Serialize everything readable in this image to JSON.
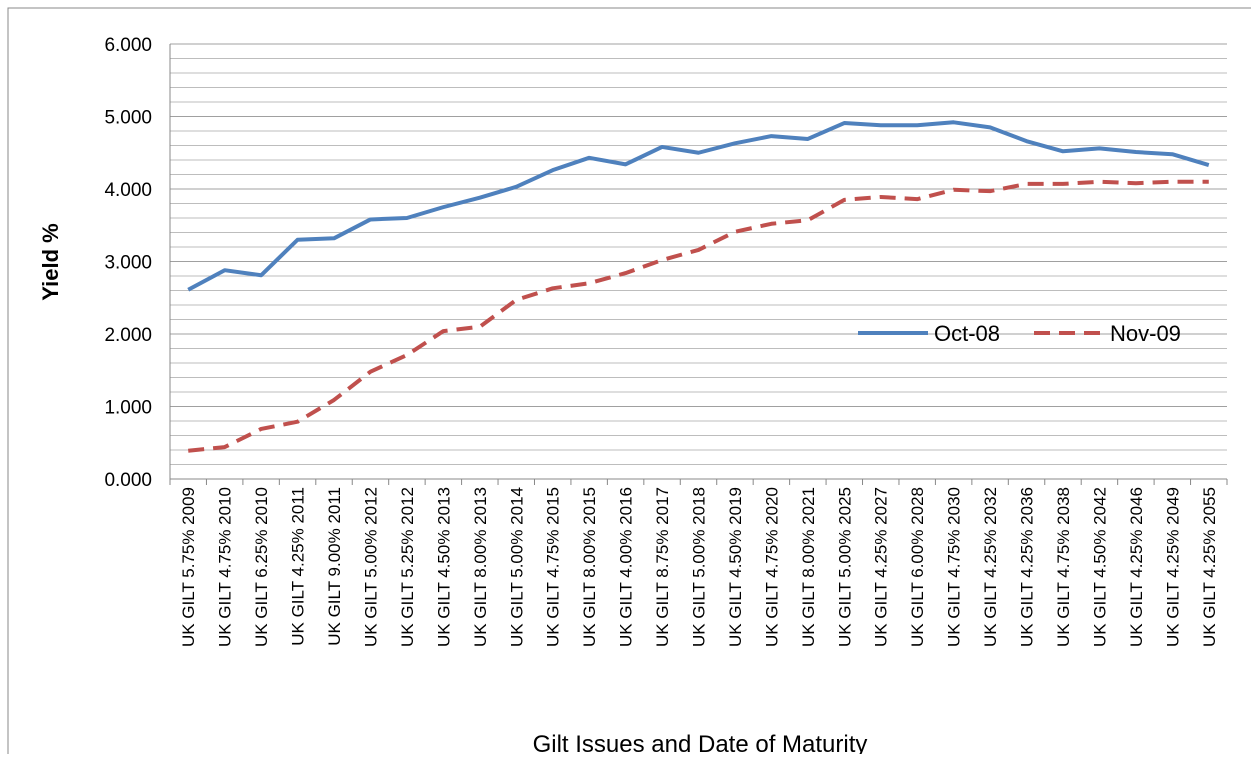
{
  "chart_data": {
    "type": "line",
    "x_label": "Gilt Issues and Date of Maturity",
    "y_label": "Yield %",
    "categories": [
      "UK GILT 5.75% 2009",
      "UK GILT 4.75% 2010",
      "UK GILT 6.25% 2010",
      "UK GILT 4.25% 2011",
      "UK GILT 9.00% 2011",
      "UK GILT 5.00% 2012",
      "UK GILT 5.25% 2012",
      "UK GILT 4.50% 2013",
      "UK GILT 8.00% 2013",
      "UK GILT 5.00% 2014",
      "UK GILT 4.75% 2015",
      "UK GILT 8.00% 2015",
      "UK GILT 4.00% 2016",
      "UK GILT 8.75% 2017",
      "UK GILT 5.00% 2018",
      "UK GILT 4.50% 2019",
      "UK GILT 4.75% 2020",
      "UK GILT 8.00% 2021",
      "UK GILT 5.00% 2025",
      "UK GILT 4.25% 2027",
      "UK GILT 6.00% 2028",
      "UK GILT 4.75% 2030",
      "UK GILT 4.25% 2032",
      "UK GILT 4.25% 2036",
      "UK GILT 4.75% 2038",
      "UK GILT 4.50% 2042",
      "UK GILT 4.25% 2046",
      "UK GILT 4.25% 2049",
      "UK GILT 4.25% 2055"
    ],
    "series": [
      {
        "name": "Oct-08",
        "color": "#4f81bd",
        "dash": false,
        "values": [
          2.61,
          2.88,
          2.81,
          3.3,
          3.32,
          3.58,
          3.6,
          3.75,
          3.88,
          4.03,
          4.26,
          4.43,
          4.34,
          4.58,
          4.5,
          4.63,
          4.73,
          4.69,
          4.91,
          4.88,
          4.88,
          4.92,
          4.85,
          4.66,
          4.52,
          4.56,
          4.51,
          4.48,
          4.33
        ]
      },
      {
        "name": "Nov-09",
        "color": "#c0504d",
        "dash": true,
        "values": [
          0.39,
          0.44,
          0.69,
          0.79,
          1.09,
          1.48,
          1.71,
          2.04,
          2.1,
          2.47,
          2.63,
          2.7,
          2.84,
          3.02,
          3.16,
          3.41,
          3.52,
          3.57,
          3.85,
          3.89,
          3.86,
          3.99,
          3.97,
          4.07,
          4.07,
          4.1,
          4.08,
          4.1,
          4.1
        ]
      }
    ],
    "ylim": [
      0,
      6
    ],
    "yticks": [
      {
        "value": 0,
        "label": "0.000"
      },
      {
        "value": 1,
        "label": "1.000"
      },
      {
        "value": 2,
        "label": "2.000"
      },
      {
        "value": 3,
        "label": "3.000"
      },
      {
        "value": 4,
        "label": "4.000"
      },
      {
        "value": 5,
        "label": "5.000"
      },
      {
        "value": 6,
        "label": "6.000"
      }
    ],
    "minor_yticks": [
      0.2,
      0.4,
      0.6,
      0.8,
      1.2,
      1.4,
      1.6,
      1.8,
      2.2,
      2.4,
      2.6,
      2.8,
      3.2,
      3.4,
      3.6,
      3.8,
      4.2,
      4.4,
      4.6,
      4.8,
      5.2,
      5.4,
      5.6,
      5.8
    ],
    "grid": true,
    "legend": "right"
  }
}
